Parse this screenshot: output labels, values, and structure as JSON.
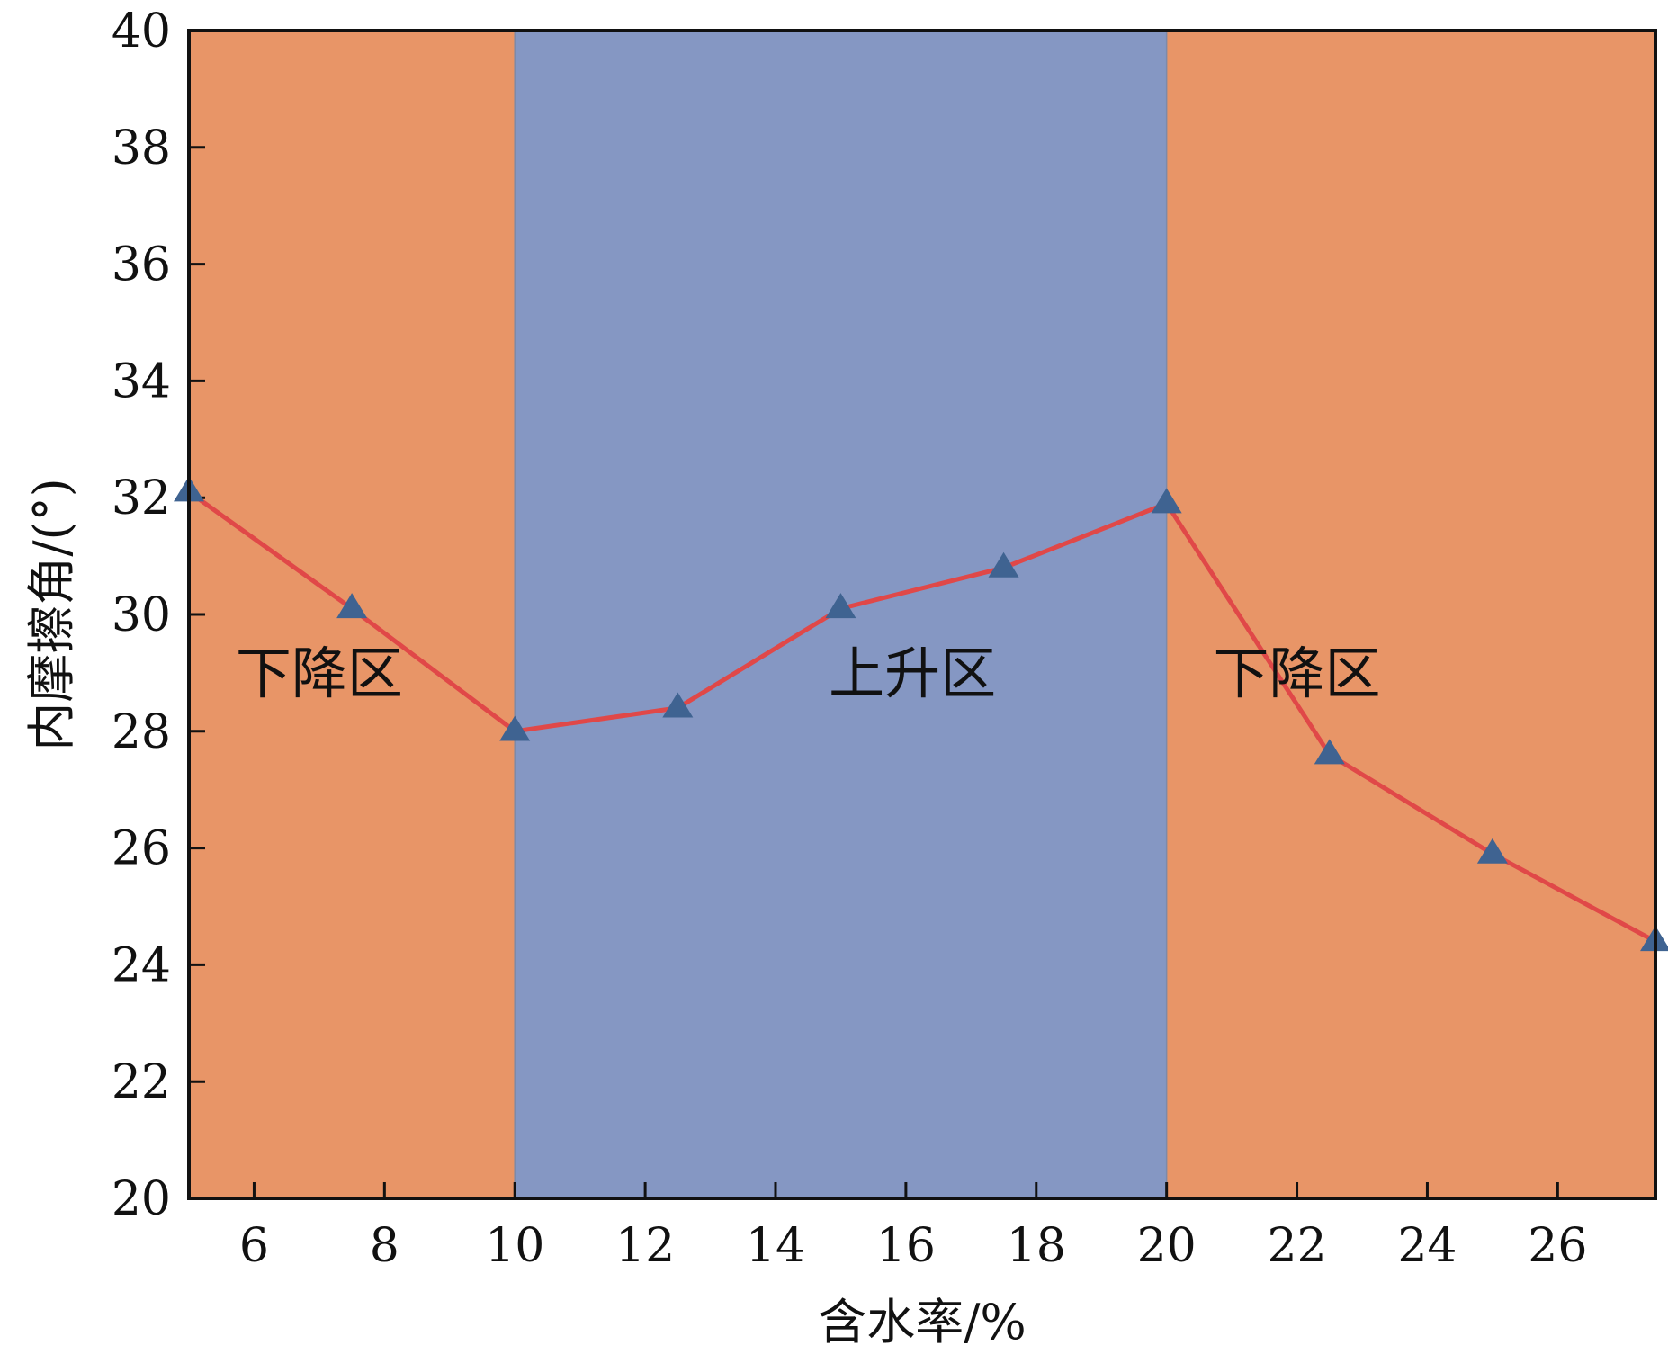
{
  "chart_data": {
    "type": "line",
    "xlabel": "含水率/%",
    "ylabel": "内摩擦角/(°)",
    "xlim": [
      5,
      27.5
    ],
    "ylim": [
      20,
      40
    ],
    "x_ticks": [
      6,
      8,
      10,
      12,
      14,
      16,
      18,
      20,
      22,
      24,
      26
    ],
    "y_ticks": [
      20,
      22,
      24,
      26,
      28,
      30,
      32,
      34,
      36,
      38,
      40
    ],
    "series": [
      {
        "x": [
          5,
          7.5,
          10,
          12.5,
          15,
          17.5,
          20,
          22.5,
          25,
          27.5
        ],
        "values": [
          32.1,
          30.1,
          28.0,
          28.4,
          30.1,
          30.8,
          31.9,
          27.6,
          25.9,
          24.4
        ],
        "color": "#e04848",
        "marker": "triangle",
        "marker_color": "#3f6391"
      }
    ],
    "regions": [
      {
        "x_start": 5,
        "x_end": 10,
        "color": "#e89567",
        "label": "下降区",
        "label_x": 7,
        "label_y": 29
      },
      {
        "x_start": 10,
        "x_end": 20,
        "color": "#8597c3",
        "label": "上升区",
        "label_x": 16.1,
        "label_y": 29
      },
      {
        "x_start": 20,
        "x_end": 27.5,
        "color": "#e89567",
        "label": "下降区",
        "label_x": 22,
        "label_y": 29
      }
    ],
    "grid": false,
    "legend": "none"
  }
}
